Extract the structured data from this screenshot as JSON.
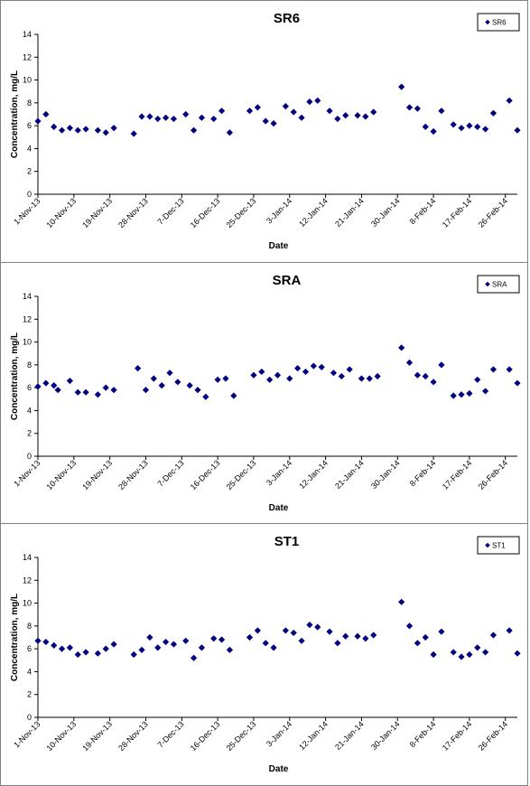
{
  "chart_data": [
    {
      "type": "scatter",
      "title": "SR6",
      "xlabel": "Date",
      "ylabel": "Concentration, mg/L",
      "ylim": [
        0,
        14
      ],
      "yticks": [
        0,
        2,
        4,
        6,
        8,
        10,
        12,
        14
      ],
      "xlim": [
        "2013-11-01",
        "2014-03-01"
      ],
      "xticks": [
        "1-Nov-13",
        "10-Nov-13",
        "19-Nov-13",
        "28-Nov-13",
        "7-Dec-13",
        "16-Dec-13",
        "25-Dec-13",
        "3-Jan-14",
        "12-Jan-14",
        "21-Jan-14",
        "30-Jan-14",
        "8-Feb-14",
        "17-Feb-14",
        "26-Feb-14"
      ],
      "grid": false,
      "legend_position": "top-right",
      "marker_color": "#000080",
      "series": [
        {
          "name": "SR6",
          "points": [
            [
              "2013-11-01",
              6.4
            ],
            [
              "2013-11-03",
              7.0
            ],
            [
              "2013-11-05",
              5.9
            ],
            [
              "2013-11-07",
              5.6
            ],
            [
              "2013-11-09",
              5.8
            ],
            [
              "2013-11-11",
              5.6
            ],
            [
              "2013-11-13",
              5.7
            ],
            [
              "2013-11-16",
              5.6
            ],
            [
              "2013-11-18",
              5.4
            ],
            [
              "2013-11-20",
              5.8
            ],
            [
              "2013-11-25",
              5.3
            ],
            [
              "2013-11-27",
              6.8
            ],
            [
              "2013-11-29",
              6.8
            ],
            [
              "2013-12-01",
              6.6
            ],
            [
              "2013-12-03",
              6.7
            ],
            [
              "2013-12-05",
              6.6
            ],
            [
              "2013-12-08",
              7.0
            ],
            [
              "2013-12-10",
              5.6
            ],
            [
              "2013-12-12",
              6.7
            ],
            [
              "2013-12-15",
              6.6
            ],
            [
              "2013-12-17",
              7.3
            ],
            [
              "2013-12-19",
              5.4
            ],
            [
              "2013-12-24",
              7.3
            ],
            [
              "2013-12-26",
              7.6
            ],
            [
              "2013-12-28",
              6.4
            ],
            [
              "2013-12-30",
              6.2
            ],
            [
              "2014-01-02",
              7.7
            ],
            [
              "2014-01-04",
              7.2
            ],
            [
              "2014-01-06",
              6.7
            ],
            [
              "2014-01-08",
              8.1
            ],
            [
              "2014-01-10",
              8.2
            ],
            [
              "2014-01-13",
              7.3
            ],
            [
              "2014-01-15",
              6.6
            ],
            [
              "2014-01-17",
              6.9
            ],
            [
              "2014-01-20",
              6.9
            ],
            [
              "2014-01-22",
              6.8
            ],
            [
              "2014-01-24",
              7.2
            ],
            [
              "2014-01-31",
              9.4
            ],
            [
              "2014-02-02",
              7.6
            ],
            [
              "2014-02-04",
              7.5
            ],
            [
              "2014-02-06",
              5.9
            ],
            [
              "2014-02-08",
              5.5
            ],
            [
              "2014-02-10",
              7.3
            ],
            [
              "2014-02-13",
              6.1
            ],
            [
              "2014-02-15",
              5.8
            ],
            [
              "2014-02-17",
              6.0
            ],
            [
              "2014-02-19",
              5.9
            ],
            [
              "2014-02-21",
              5.7
            ],
            [
              "2014-02-23",
              7.1
            ],
            [
              "2014-02-27",
              8.2
            ],
            [
              "2014-03-01",
              5.6
            ]
          ]
        }
      ]
    },
    {
      "type": "scatter",
      "title": "SRA",
      "xlabel": "Date",
      "ylabel": "Concentration, mg/L",
      "ylim": [
        0,
        14
      ],
      "yticks": [
        0,
        2,
        4,
        6,
        8,
        10,
        12,
        14
      ],
      "xlim": [
        "2013-11-01",
        "2014-03-01"
      ],
      "xticks": [
        "1-Nov-13",
        "10-Nov-13",
        "19-Nov-13",
        "28-Nov-13",
        "7-Dec-13",
        "16-Dec-13",
        "25-Dec-13",
        "3-Jan-14",
        "12-Jan-14",
        "21-Jan-14",
        "30-Jan-14",
        "8-Feb-14",
        "17-Feb-14",
        "26-Feb-14"
      ],
      "grid": false,
      "legend_position": "top-right",
      "marker_color": "#000080",
      "series": [
        {
          "name": "SRA",
          "points": [
            [
              "2013-11-01",
              6.1
            ],
            [
              "2013-11-03",
              6.4
            ],
            [
              "2013-11-05",
              6.2
            ],
            [
              "2013-11-06",
              5.8
            ],
            [
              "2013-11-09",
              6.6
            ],
            [
              "2013-11-11",
              5.6
            ],
            [
              "2013-11-13",
              5.6
            ],
            [
              "2013-11-16",
              5.4
            ],
            [
              "2013-11-18",
              6.0
            ],
            [
              "2013-11-20",
              5.8
            ],
            [
              "2013-11-26",
              7.7
            ],
            [
              "2013-11-28",
              5.8
            ],
            [
              "2013-11-30",
              6.8
            ],
            [
              "2013-12-02",
              6.2
            ],
            [
              "2013-12-04",
              7.3
            ],
            [
              "2013-12-06",
              6.5
            ],
            [
              "2013-12-09",
              6.2
            ],
            [
              "2013-12-11",
              5.8
            ],
            [
              "2013-12-13",
              5.2
            ],
            [
              "2013-12-16",
              6.7
            ],
            [
              "2013-12-18",
              6.8
            ],
            [
              "2013-12-20",
              5.3
            ],
            [
              "2013-12-25",
              7.1
            ],
            [
              "2013-12-27",
              7.4
            ],
            [
              "2013-12-29",
              6.7
            ],
            [
              "2013-12-31",
              7.1
            ],
            [
              "2014-01-03",
              6.8
            ],
            [
              "2014-01-05",
              7.7
            ],
            [
              "2014-01-07",
              7.4
            ],
            [
              "2014-01-09",
              7.9
            ],
            [
              "2014-01-11",
              7.8
            ],
            [
              "2014-01-14",
              7.3
            ],
            [
              "2014-01-16",
              7.0
            ],
            [
              "2014-01-18",
              7.6
            ],
            [
              "2014-01-21",
              6.8
            ],
            [
              "2014-01-23",
              6.8
            ],
            [
              "2014-01-25",
              7.0
            ],
            [
              "2014-01-31",
              9.5
            ],
            [
              "2014-02-02",
              8.2
            ],
            [
              "2014-02-04",
              7.1
            ],
            [
              "2014-02-06",
              7.0
            ],
            [
              "2014-02-08",
              6.5
            ],
            [
              "2014-02-10",
              8.0
            ],
            [
              "2014-02-13",
              5.3
            ],
            [
              "2014-02-15",
              5.4
            ],
            [
              "2014-02-17",
              5.5
            ],
            [
              "2014-02-19",
              6.7
            ],
            [
              "2014-02-21",
              5.7
            ],
            [
              "2014-02-23",
              7.6
            ],
            [
              "2014-02-27",
              7.6
            ],
            [
              "2014-03-01",
              6.4
            ]
          ]
        }
      ]
    },
    {
      "type": "scatter",
      "title": "ST1",
      "xlabel": "Date",
      "ylabel": "Concentration, mg/L",
      "ylim": [
        0,
        14
      ],
      "yticks": [
        0,
        2,
        4,
        6,
        8,
        10,
        12,
        14
      ],
      "xlim": [
        "2013-11-01",
        "2014-03-01"
      ],
      "xticks": [
        "1-Nov-13",
        "10-Nov-13",
        "19-Nov-13",
        "28-Nov-13",
        "7-Dec-13",
        "16-Dec-13",
        "25-Dec-13",
        "3-Jan-14",
        "12-Jan-14",
        "21-Jan-14",
        "30-Jan-14",
        "8-Feb-14",
        "17-Feb-14",
        "26-Feb-14"
      ],
      "grid": false,
      "legend_position": "top-right",
      "marker_color": "#000080",
      "series": [
        {
          "name": "ST1",
          "points": [
            [
              "2013-11-01",
              6.7
            ],
            [
              "2013-11-03",
              6.6
            ],
            [
              "2013-11-05",
              6.3
            ],
            [
              "2013-11-07",
              6.0
            ],
            [
              "2013-11-09",
              6.1
            ],
            [
              "2013-11-11",
              5.5
            ],
            [
              "2013-11-13",
              5.7
            ],
            [
              "2013-11-16",
              5.6
            ],
            [
              "2013-11-18",
              6.0
            ],
            [
              "2013-11-20",
              6.4
            ],
            [
              "2013-11-25",
              5.5
            ],
            [
              "2013-11-27",
              5.9
            ],
            [
              "2013-11-29",
              7.0
            ],
            [
              "2013-12-01",
              6.1
            ],
            [
              "2013-12-03",
              6.6
            ],
            [
              "2013-12-05",
              6.4
            ],
            [
              "2013-12-08",
              6.7
            ],
            [
              "2013-12-10",
              5.2
            ],
            [
              "2013-12-12",
              6.1
            ],
            [
              "2013-12-15",
              6.9
            ],
            [
              "2013-12-17",
              6.8
            ],
            [
              "2013-12-19",
              5.9
            ],
            [
              "2013-12-24",
              7.0
            ],
            [
              "2013-12-26",
              7.6
            ],
            [
              "2013-12-28",
              6.5
            ],
            [
              "2013-12-30",
              6.1
            ],
            [
              "2014-01-02",
              7.6
            ],
            [
              "2014-01-04",
              7.4
            ],
            [
              "2014-01-06",
              6.7
            ],
            [
              "2014-01-08",
              8.1
            ],
            [
              "2014-01-10",
              7.9
            ],
            [
              "2014-01-13",
              7.5
            ],
            [
              "2014-01-15",
              6.5
            ],
            [
              "2014-01-17",
              7.1
            ],
            [
              "2014-01-20",
              7.1
            ],
            [
              "2014-01-22",
              6.9
            ],
            [
              "2014-01-24",
              7.2
            ],
            [
              "2014-01-31",
              10.1
            ],
            [
              "2014-02-02",
              8.0
            ],
            [
              "2014-02-04",
              6.5
            ],
            [
              "2014-02-06",
              7.0
            ],
            [
              "2014-02-08",
              5.5
            ],
            [
              "2014-02-10",
              7.5
            ],
            [
              "2014-02-13",
              5.7
            ],
            [
              "2014-02-15",
              5.3
            ],
            [
              "2014-02-17",
              5.5
            ],
            [
              "2014-02-19",
              6.1
            ],
            [
              "2014-02-21",
              5.7
            ],
            [
              "2014-02-23",
              7.2
            ],
            [
              "2014-02-27",
              7.6
            ],
            [
              "2014-03-01",
              5.6
            ]
          ]
        }
      ]
    }
  ]
}
